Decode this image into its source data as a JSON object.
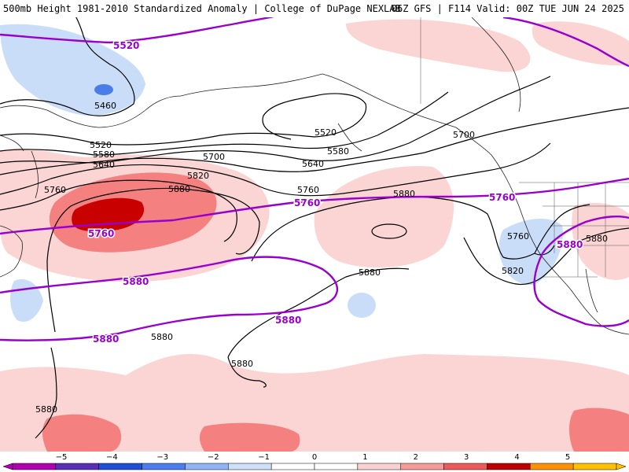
{
  "header": {
    "left_title": "500mb Height 1981-2010 Standardized Anomaly | College of DuPage NEXLAB",
    "right_title": "06Z GFS | F114 Valid: 00Z TUE JUN 24 2025"
  },
  "height_labels": {
    "l5520_top": "5520",
    "l5460": "5460",
    "l5520_low": "5520",
    "l5580_low": "5580",
    "l5640_low": "5640",
    "l5520_mid": "5520",
    "l5580_mid": "5580",
    "l5640_mid": "5640",
    "l5700_ak": "5700",
    "l5700_mid": "5700",
    "l5820": "5820",
    "l5880_w": "5880",
    "l5760_w": "5760",
    "l5760_mid": "5760",
    "l5880_mid": "5880",
    "l5880_hi": "5880",
    "l5760_coast": "5760",
    "l5820_coast": "5820",
    "l5880_sw": "5880",
    "l5880_s1": "5880",
    "l5880_s2": "5880",
    "l5880_s3": "5880"
  },
  "climo_labels": {
    "c5520": "5520",
    "c5760_low": "5760",
    "c5760": "5760",
    "c5760_e": "5760",
    "c5880_a": "5880",
    "c5880_b": "5880",
    "c5880_c": "5880",
    "c5880_d": "5880"
  },
  "colorbar": {
    "ticks": [
      "−5",
      "−4",
      "−3",
      "−2",
      "−1",
      "0",
      "1",
      "2",
      "3",
      "4",
      "5"
    ],
    "colors": [
      "#b000b0",
      "#5a2fb8",
      "#1f4fd8",
      "#4b7cf0",
      "#8fb4f5",
      "#cfe0fa",
      "#ffffff",
      "#ffffff",
      "#fbd0d0",
      "#f79a9a",
      "#ee5a5a",
      "#c00000",
      "#ff9000",
      "#ffc000"
    ]
  },
  "colors": {
    "climo_contour": "#9900cc",
    "height_contour": "#000000",
    "pos_anom_1": "#fbd4d4",
    "pos_anom_2": "#f48080",
    "pos_anom_3": "#c80000",
    "neg_anom_1": "#c9ddf8",
    "neg_anom_2": "#4a7de8"
  }
}
